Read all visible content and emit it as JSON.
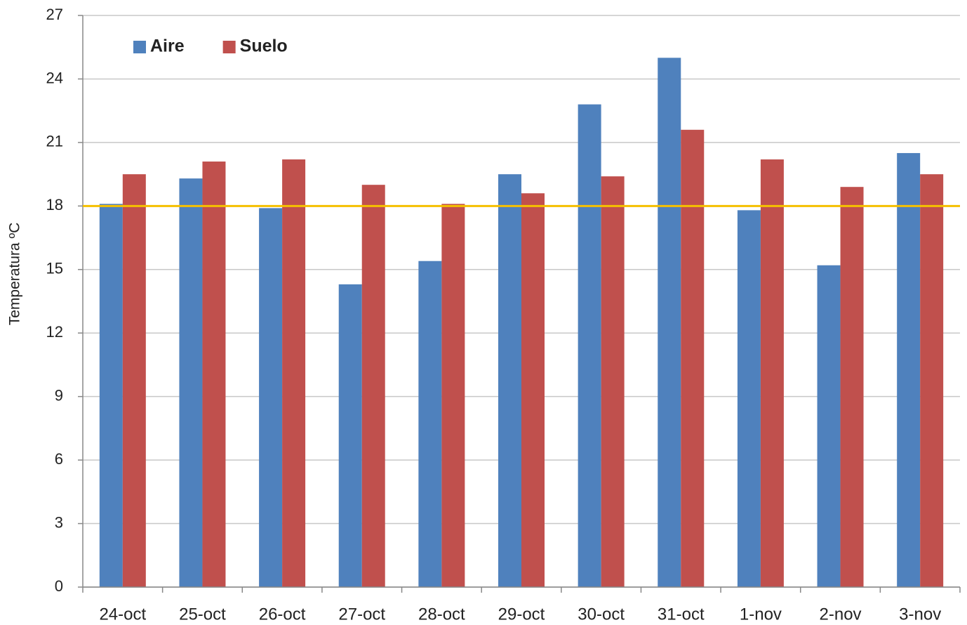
{
  "chart_data": {
    "type": "bar",
    "y_label": "Temperatura ºC",
    "categories": [
      "24-oct",
      "25-oct",
      "26-oct",
      "27-oct",
      "28-oct",
      "29-oct",
      "30-oct",
      "31-oct",
      "1-nov",
      "2-nov",
      "3-nov"
    ],
    "series": [
      {
        "name": "Aire",
        "color": "#4f81bd",
        "values": [
          18.1,
          19.3,
          17.9,
          14.3,
          15.4,
          19.5,
          22.8,
          25.0,
          17.8,
          15.2,
          20.5
        ]
      },
      {
        "name": "Suelo",
        "color": "#c0504d",
        "values": [
          19.5,
          20.1,
          20.2,
          19.0,
          18.1,
          18.6,
          19.4,
          21.6,
          20.2,
          18.9,
          19.5
        ]
      }
    ],
    "ylim": [
      0,
      27
    ],
    "yticks": [
      0,
      3,
      6,
      9,
      12,
      15,
      18,
      21,
      24,
      27
    ],
    "grid": true,
    "legend": "top-left",
    "reference_line": {
      "value": 18,
      "color": "#f5c000"
    }
  }
}
